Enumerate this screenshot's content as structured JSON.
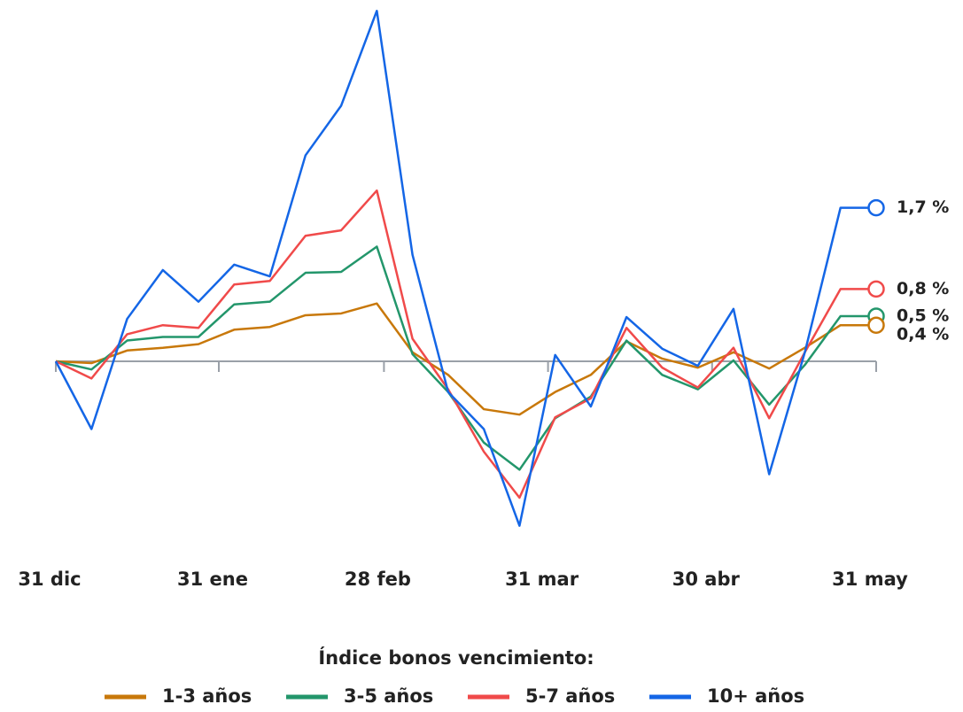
{
  "chart_data": {
    "type": "line",
    "x": [
      0,
      1,
      2,
      3,
      4,
      5,
      6,
      7,
      8,
      9,
      10,
      11,
      12,
      13,
      14,
      15,
      16,
      17,
      18,
      19,
      20,
      21,
      22,
      23
    ],
    "xlim": [
      0,
      23
    ],
    "xticks": [
      {
        "value": 0,
        "label": "31 dic"
      },
      {
        "value": 4.57,
        "label": "31 ene"
      },
      {
        "value": 9.2,
        "label": "28 feb"
      },
      {
        "value": 13.8,
        "label": "31 mar"
      },
      {
        "value": 18.4,
        "label": "30 abr"
      },
      {
        "value": 23,
        "label": "31 may"
      }
    ],
    "ylim": [
      -2.0,
      4.0
    ],
    "legend_title": "Índice bonos vencimiento:",
    "series": [
      {
        "name": "1-3 años",
        "color": "#c8780a",
        "end_label": "0,4 %",
        "values": [
          0,
          -0.02,
          0.12,
          0.15,
          0.19,
          0.35,
          0.38,
          0.51,
          0.53,
          0.64,
          0.1,
          -0.15,
          -0.53,
          -0.59,
          -0.34,
          -0.15,
          0.22,
          0.03,
          -0.07,
          0.1,
          -0.08,
          0.15,
          0.4,
          0.4
        ]
      },
      {
        "name": "3-5 años",
        "color": "#23966b",
        "end_label": "0,5 %",
        "values": [
          0,
          -0.09,
          0.23,
          0.27,
          0.27,
          0.63,
          0.66,
          0.98,
          0.99,
          1.27,
          0.08,
          -0.34,
          -0.9,
          -1.2,
          -0.63,
          -0.39,
          0.23,
          -0.15,
          -0.31,
          0.01,
          -0.48,
          -0.04,
          0.5,
          0.5
        ]
      },
      {
        "name": "5-7 años",
        "color": "#f04a4a",
        "end_label": "0,8 %",
        "values": [
          0,
          -0.19,
          0.3,
          0.4,
          0.37,
          0.85,
          0.89,
          1.39,
          1.45,
          1.89,
          0.25,
          -0.31,
          -1.0,
          -1.51,
          -0.62,
          -0.41,
          0.37,
          -0.07,
          -0.29,
          0.15,
          -0.63,
          0.1,
          0.8,
          0.8
        ]
      },
      {
        "name": "10+ años",
        "color": "#1466e6",
        "end_label": "1,7 %",
        "values": [
          0,
          -0.75,
          0.47,
          1.01,
          0.66,
          1.07,
          0.94,
          2.28,
          2.83,
          3.88,
          1.18,
          -0.34,
          -0.75,
          -1.82,
          0.07,
          -0.5,
          0.49,
          0.14,
          -0.05,
          0.58,
          -1.25,
          0.1,
          1.7,
          1.7
        ]
      }
    ]
  }
}
